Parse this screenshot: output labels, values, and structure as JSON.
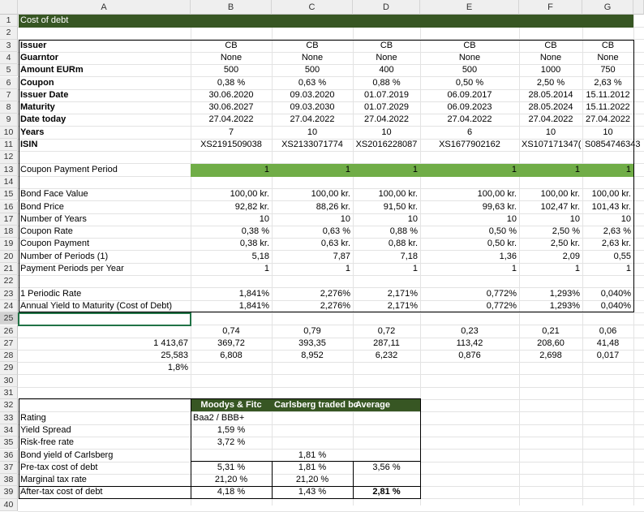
{
  "sheet": {
    "title": "Cost of debt",
    "columns": [
      "A",
      "B",
      "C",
      "D",
      "E",
      "F",
      "G"
    ],
    "rows": [
      "1",
      "2",
      "3",
      "4",
      "5",
      "6",
      "7",
      "8",
      "9",
      "10",
      "11",
      "12",
      "13",
      "14",
      "15",
      "16",
      "17",
      "18",
      "19",
      "20",
      "21",
      "22",
      "23",
      "24",
      "25",
      "26",
      "27",
      "28",
      "29",
      "30",
      "31",
      "32",
      "33",
      "34",
      "35",
      "36",
      "37",
      "38",
      "39",
      "40"
    ]
  },
  "bonds": {
    "labels": {
      "issuer": "Issuer",
      "guarantor": "Guarntor",
      "amount": "Amount EURm",
      "coupon": "Coupon",
      "issue_date": "Issuer Date",
      "maturity": "Maturity",
      "date_today": "Date today",
      "years": "Years",
      "isin": "ISIN"
    },
    "issuer": [
      "CB",
      "CB",
      "CB",
      "CB",
      "CB",
      "CB"
    ],
    "guarantor": [
      "None",
      "None",
      "None",
      "None",
      "None",
      "None"
    ],
    "amount": [
      "500",
      "500",
      "400",
      "500",
      "1000",
      "750"
    ],
    "coupon": [
      "0,38 %",
      "0,63 %",
      "0,88 %",
      "0,50 %",
      "2,50 %",
      "2,63 %"
    ],
    "issue_date": [
      "30.06.2020",
      "09.03.2020",
      "01.07.2019",
      "06.09.2017",
      "28.05.2014",
      "15.11.2012"
    ],
    "maturity": [
      "30.06.2027",
      "09.03.2030",
      "01.07.2029",
      "06.09.2023",
      "28.05.2024",
      "15.11.2022"
    ],
    "date_today": [
      "27.04.2022",
      "27.04.2022",
      "27.04.2022",
      "27.04.2022",
      "27.04.2022",
      "27.04.2022"
    ],
    "years": [
      "7",
      "10",
      "10",
      "6",
      "10",
      "10"
    ],
    "isin": [
      "XS2191509038",
      "XS2133071774",
      "XS2016228087",
      "XS1677902162",
      "XS107171347(",
      "S0854746343"
    ]
  },
  "coupon_period": {
    "label": "Coupon Payment Period",
    "values": [
      "1",
      "1",
      "1",
      "1",
      "1",
      "1"
    ]
  },
  "ytm": {
    "labels": {
      "face": "Bond Face Value",
      "price": "Bond Price",
      "years": "Number of Years",
      "rate": "Coupon Rate",
      "payment": "Coupon Payment",
      "periods": "Number of Periods (1)",
      "ppy": "Payment Periods per Year",
      "periodic": "1 Periodic Rate",
      "annual": "Annual Yield to Maturity (Cost of Debt)"
    },
    "face": [
      "100,00 kr.",
      "100,00 kr.",
      "100,00 kr.",
      "100,00 kr.",
      "100,00 kr.",
      "100,00 kr."
    ],
    "price": [
      "92,82 kr.",
      "88,26 kr.",
      "91,50 kr.",
      "99,63 kr.",
      "102,47 kr.",
      "101,43 kr."
    ],
    "years": [
      "10",
      "10",
      "10",
      "10",
      "10",
      "10"
    ],
    "rate": [
      "0,38 %",
      "0,63 %",
      "0,88 %",
      "0,50 %",
      "2,50 %",
      "2,63 %"
    ],
    "payment": [
      "0,38 kr.",
      "0,63 kr.",
      "0,88 kr.",
      "0,50 kr.",
      "2,50 kr.",
      "2,63 kr."
    ],
    "periods": [
      "5,18",
      "7,87",
      "7,18",
      "1,36",
      "2,09",
      "0,55"
    ],
    "ppy": [
      "1",
      "1",
      "1",
      "1",
      "1",
      "1"
    ],
    "periodic": [
      "1,841%",
      "2,276%",
      "2,171%",
      "0,772%",
      "1,293%",
      "0,040%"
    ],
    "annual": [
      "1,841%",
      "2,276%",
      "2,171%",
      "0,772%",
      "1,293%",
      "0,040%"
    ]
  },
  "weights": {
    "row26": [
      "0,74",
      "0,79",
      "0,72",
      "0,23",
      "0,21",
      "0,06"
    ],
    "row27_a": "1 413,67",
    "row27": [
      "369,72",
      "393,35",
      "287,11",
      "113,42",
      "208,60",
      "41,48"
    ],
    "row28_a": "25,583",
    "row28": [
      "6,808",
      "8,952",
      "6,232",
      "0,876",
      "2,698",
      "0,017"
    ],
    "row29_a": "1,8%"
  },
  "summary": {
    "headers": [
      "Moodys & Fitc",
      "Carlsberg traded bc",
      "Average"
    ],
    "rating_label": "Rating",
    "rating_b": "Baa2 / BBB+",
    "spread_label": "Yield Spread",
    "spread_b": "1,59 %",
    "rf_label": "Risk-free rate",
    "rf_b": "3,72 %",
    "bond_yield_label": "Bond yield of Carlsberg",
    "bond_yield_c": "1,81 %",
    "pretax_label": "Pre-tax cost of debt",
    "pretax": [
      "5,31 %",
      "1,81 %",
      "3,56 %"
    ],
    "tax_label": "Marginal tax rate",
    "tax": [
      "21,20 %",
      "21,20 %"
    ],
    "aftertax_label": "After-tax cost of debt",
    "aftertax": [
      "4,18 %",
      "1,43 %",
      "2,81 %"
    ]
  }
}
